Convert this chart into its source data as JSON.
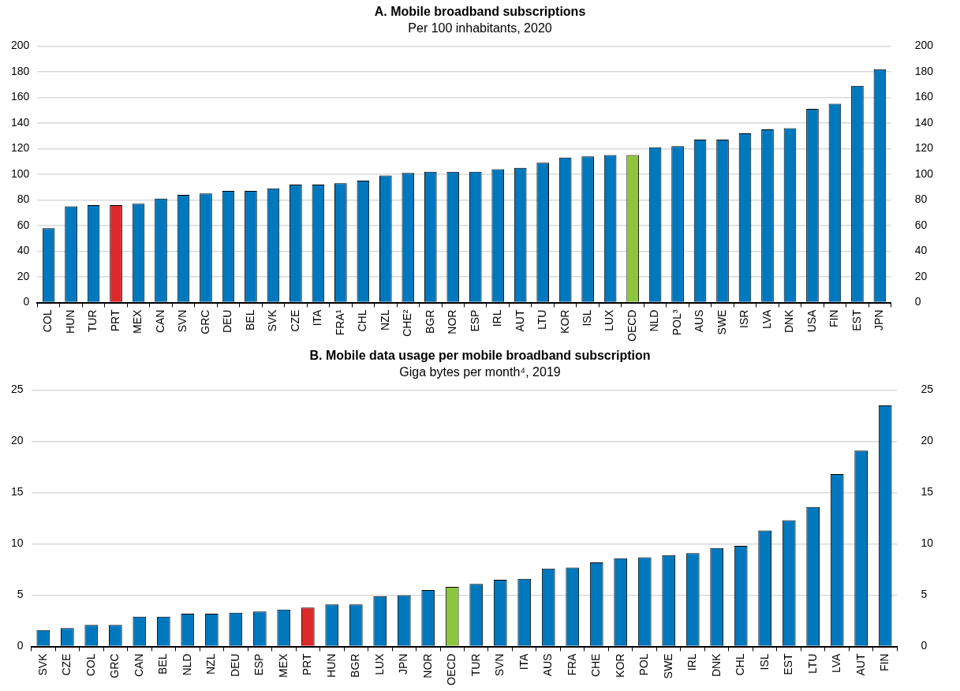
{
  "chart_data": [
    {
      "type": "bar",
      "title": "A. Mobile broadband subscriptions",
      "subtitle": "Per 100 inhabitants, 2020",
      "categories": [
        "COL",
        "HUN",
        "TUR",
        "PRT",
        "MEX",
        "CAN",
        "SVN",
        "GRC",
        "DEU",
        "BEL",
        "SVK",
        "CZE",
        "ITA",
        "FRA¹",
        "CHL",
        "NZL",
        "CHE²",
        "BGR",
        "NOR",
        "ESP",
        "IRL",
        "AUT",
        "LTU",
        "KOR",
        "ISL",
        "LUX",
        "OECD",
        "NLD",
        "POL³",
        "AUS",
        "SWE",
        "ISR",
        "LVA",
        "DNK",
        "USA",
        "FIN",
        "EST",
        "JPN"
      ],
      "values": [
        58,
        75,
        76,
        76,
        77,
        81,
        84,
        85,
        87,
        87,
        89,
        92,
        92,
        93,
        95,
        99,
        101,
        102,
        102,
        102,
        104,
        105,
        109,
        113,
        114,
        115,
        115,
        121,
        122,
        127,
        127,
        132,
        135,
        136,
        151,
        155,
        169,
        182
      ],
      "colors": [
        "#0078be",
        "#0078be",
        "#0078be",
        "#dc2a2a",
        "#0078be",
        "#0078be",
        "#0078be",
        "#0078be",
        "#0078be",
        "#0078be",
        "#0078be",
        "#0078be",
        "#0078be",
        "#0078be",
        "#0078be",
        "#0078be",
        "#0078be",
        "#0078be",
        "#0078be",
        "#0078be",
        "#0078be",
        "#0078be",
        "#0078be",
        "#0078be",
        "#0078be",
        "#0078be",
        "#8cc63f",
        "#0078be",
        "#0078be",
        "#0078be",
        "#0078be",
        "#0078be",
        "#0078be",
        "#0078be",
        "#0078be",
        "#0078be",
        "#0078be",
        "#0078be"
      ],
      "ylim": [
        0,
        200
      ],
      "yticks": [
        0,
        20,
        40,
        60,
        80,
        100,
        120,
        140,
        160,
        180,
        200
      ],
      "y2lim": [
        0,
        200
      ],
      "y2ticks": [
        0,
        20,
        40,
        60,
        80,
        100,
        120,
        140,
        160,
        180,
        200
      ],
      "grid": "y"
    },
    {
      "type": "bar",
      "title": "B. Mobile data usage per mobile broadband subscription",
      "subtitle": "Giga bytes per month⁴, 2019",
      "categories": [
        "SVK",
        "CZE",
        "COL",
        "GRC",
        "CAN",
        "BEL",
        "NLD",
        "NZL",
        "DEU",
        "ESP",
        "MEX",
        "PRT",
        "HUN",
        "BGR",
        "LUX",
        "JPN",
        "NOR",
        "OECD",
        "TUR",
        "SVN",
        "ITA",
        "AUS",
        "FRA",
        "CHE",
        "KOR",
        "POL",
        "SWE",
        "IRL",
        "DNK",
        "CHL",
        "ISL",
        "EST",
        "LTU",
        "LVA",
        "AUT",
        "FIN"
      ],
      "values": [
        1.6,
        1.8,
        2.1,
        2.1,
        2.9,
        2.9,
        3.2,
        3.2,
        3.3,
        3.4,
        3.6,
        3.8,
        4.1,
        4.1,
        4.9,
        5.0,
        5.5,
        5.8,
        6.1,
        6.5,
        6.6,
        7.6,
        7.7,
        8.2,
        8.6,
        8.7,
        8.9,
        9.1,
        9.6,
        9.8,
        11.3,
        12.3,
        13.6,
        16.8,
        19.1,
        23.5
      ],
      "colors": [
        "#0078be",
        "#0078be",
        "#0078be",
        "#0078be",
        "#0078be",
        "#0078be",
        "#0078be",
        "#0078be",
        "#0078be",
        "#0078be",
        "#0078be",
        "#dc2a2a",
        "#0078be",
        "#0078be",
        "#0078be",
        "#0078be",
        "#0078be",
        "#8cc63f",
        "#0078be",
        "#0078be",
        "#0078be",
        "#0078be",
        "#0078be",
        "#0078be",
        "#0078be",
        "#0078be",
        "#0078be",
        "#0078be",
        "#0078be",
        "#0078be",
        "#0078be",
        "#0078be",
        "#0078be",
        "#0078be",
        "#0078be",
        "#0078be"
      ],
      "ylim": [
        0,
        25
      ],
      "yticks": [
        0,
        5,
        10,
        15,
        20,
        25
      ],
      "y2lim": [
        0,
        25
      ],
      "y2ticks": [
        0,
        5,
        10,
        15,
        20,
        25
      ],
      "grid": "y"
    }
  ]
}
